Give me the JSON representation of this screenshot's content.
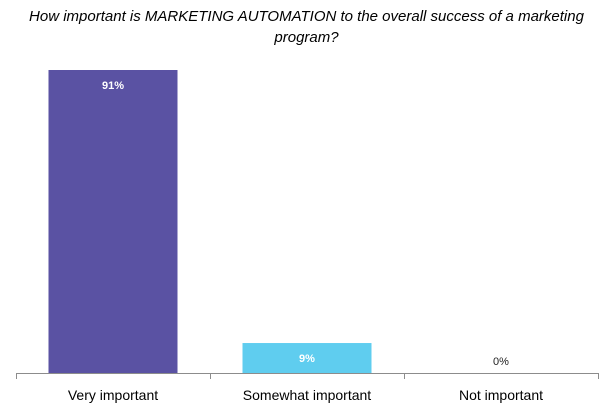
{
  "chart_data": {
    "type": "bar",
    "title": "How important is MARKETING AUTOMATION  to the overall success of a marketing program?",
    "categories": [
      "Very important",
      "Somewhat important",
      "Not important"
    ],
    "values": [
      91,
      9,
      0
    ],
    "data_labels": [
      "91%",
      "9%",
      "0%"
    ],
    "colors": [
      "#5A52A3",
      "#5FCDEF",
      "#9E9E9E"
    ],
    "ylim": [
      0,
      100
    ],
    "xlabel": "",
    "ylabel": "",
    "grid": false,
    "legend": "none"
  }
}
